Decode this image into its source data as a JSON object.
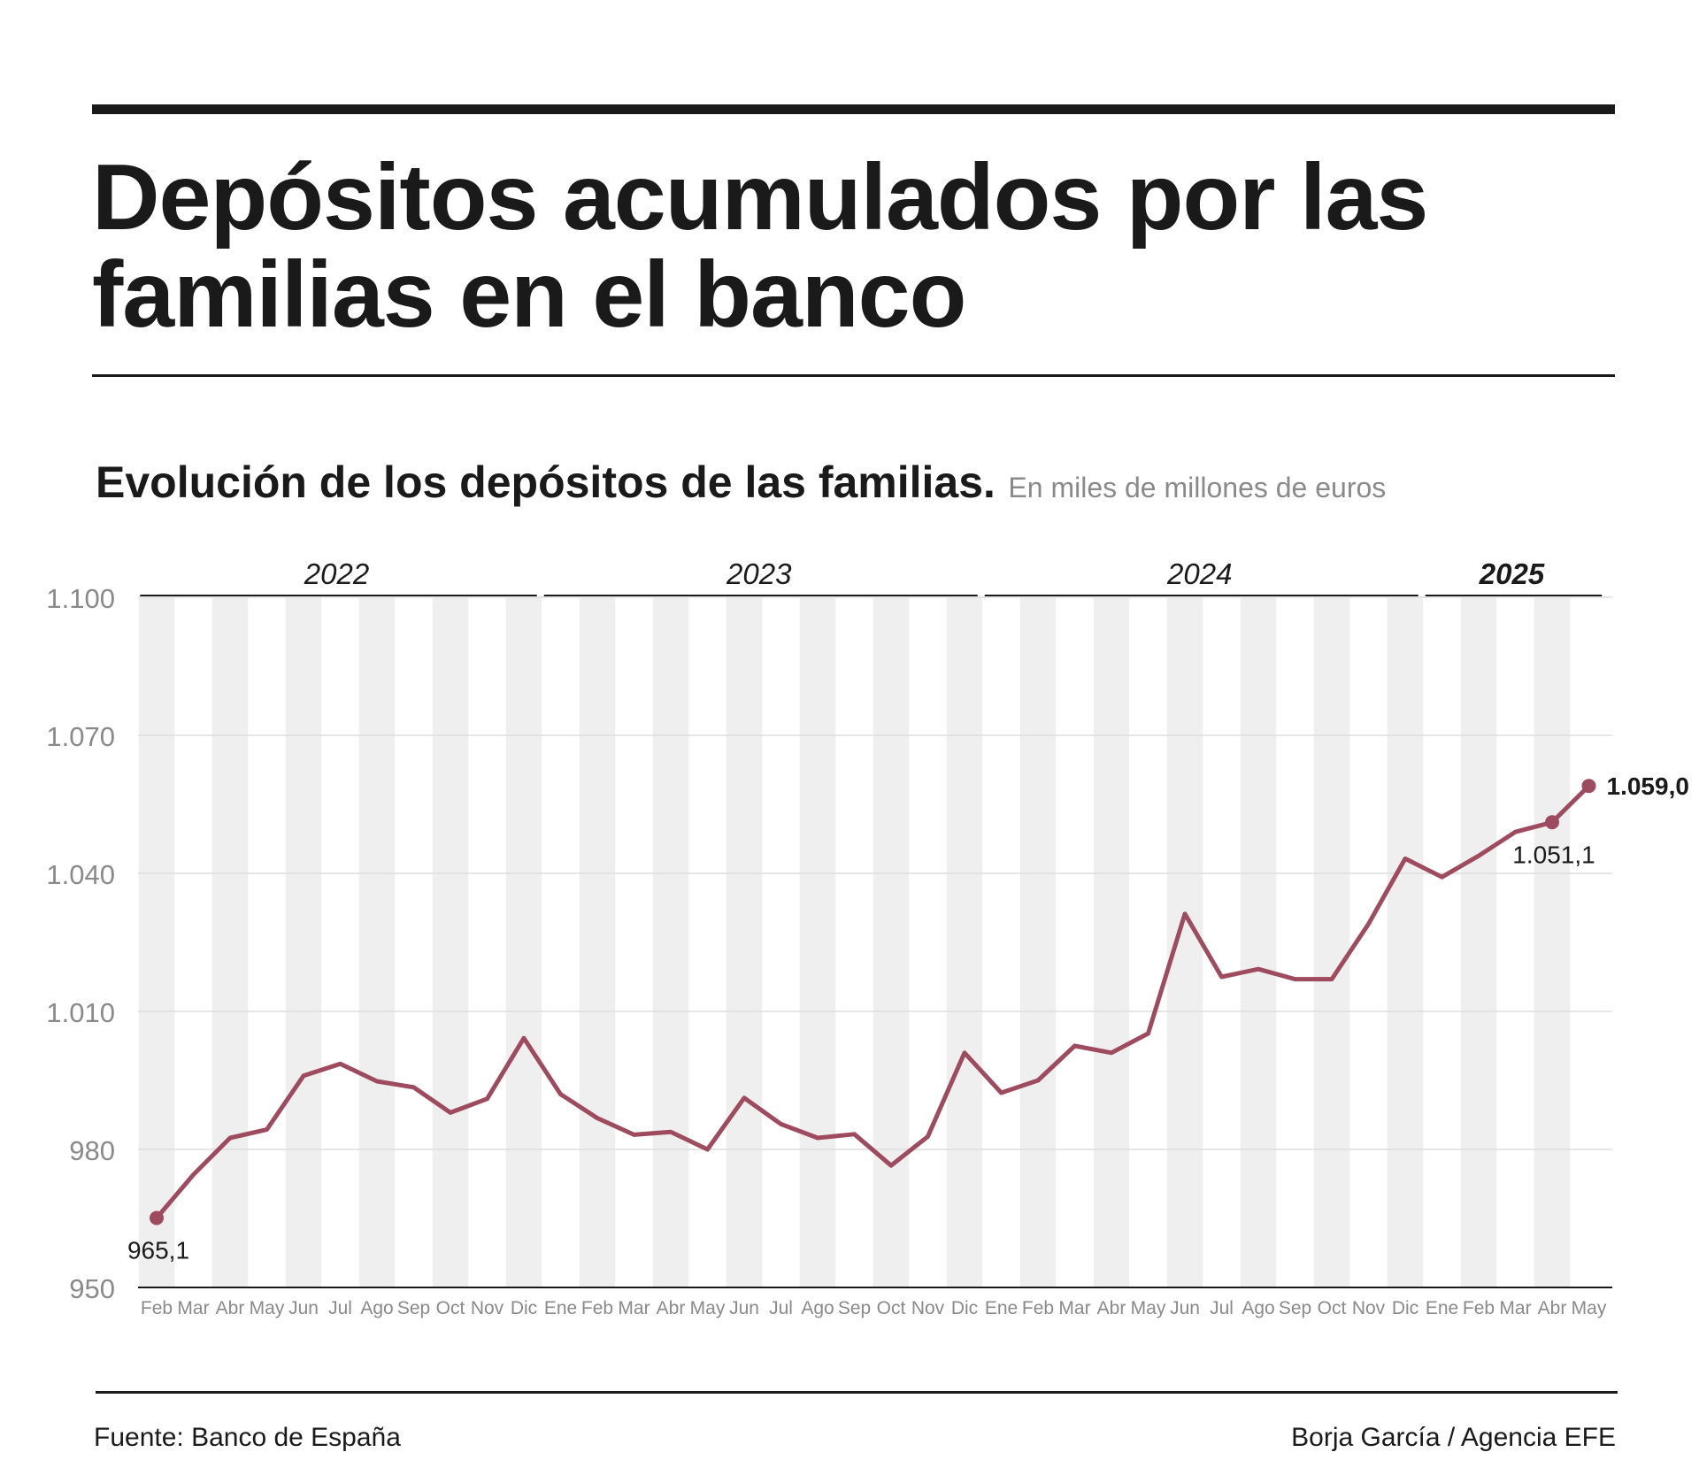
{
  "title": "Depósitos acumulados por las familias en el banco",
  "subtitle": "Evolución de los depósitos de las familias.",
  "units": "En miles de millones de euros",
  "source": "Fuente: Banco de España",
  "credit": "Borja García / Agencia EFE",
  "colors": {
    "line": "#9e4a5f",
    "stripe": "#efefef",
    "grid": "#dddddd",
    "axis_text": "#8a8a8a"
  },
  "chart_data": {
    "type": "line",
    "x": [
      "Feb",
      "Mar",
      "Abr",
      "May",
      "Jun",
      "Jul",
      "Ago",
      "Sep",
      "Oct",
      "Nov",
      "Dic",
      "Ene",
      "Feb",
      "Mar",
      "Abr",
      "May",
      "Jun",
      "Jul",
      "Ago",
      "Sep",
      "Oct",
      "Nov",
      "Dic",
      "Ene",
      "Feb",
      "Mar",
      "Abr",
      "May",
      "Jun",
      "Jul",
      "Ago",
      "Sep",
      "Oct",
      "Nov",
      "Dic",
      "Ene",
      "Feb",
      "Mar",
      "Abr",
      "May"
    ],
    "years": [
      {
        "label": "2022",
        "start": 0,
        "end": 10,
        "bold": false
      },
      {
        "label": "2023",
        "start": 11,
        "end": 22,
        "bold": false
      },
      {
        "label": "2024",
        "start": 23,
        "end": 34,
        "bold": false
      },
      {
        "label": "2025",
        "start": 35,
        "end": 39,
        "bold": true
      }
    ],
    "series": [
      {
        "values": [
          965.1,
          974.5,
          982.5,
          984.3,
          996.0,
          998.6,
          994.8,
          993.5,
          988.0,
          991.0,
          1004.2,
          992.0,
          986.8,
          983.2,
          983.8,
          980.0,
          991.2,
          985.5,
          982.5,
          983.3,
          976.5,
          982.8,
          1001.0,
          992.3,
          995.0,
          1002.5,
          1001.0,
          1005.2,
          1031.2,
          1017.5,
          1019.2,
          1017.0,
          1017.0,
          1029.0,
          1043.2,
          1039.2,
          1043.8,
          1049.0,
          1051.1,
          1059.0
        ]
      }
    ],
    "yticks": [
      "950",
      "980",
      "1.010",
      "1.040",
      "1.070",
      "1.100"
    ],
    "ylim": [
      950,
      1100
    ],
    "grid": true,
    "annotations": [
      {
        "index": 0,
        "label": "965,1",
        "bold": false,
        "position": "below"
      },
      {
        "index": 38,
        "label": "1.051,1",
        "bold": false,
        "position": "below"
      },
      {
        "index": 39,
        "label": "1.059,0",
        "bold": true,
        "position": "right"
      }
    ]
  }
}
